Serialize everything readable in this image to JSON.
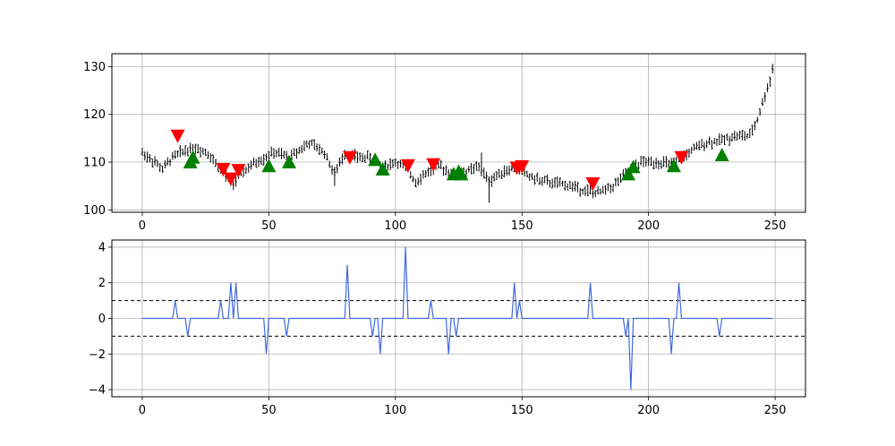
{
  "chart_data": [
    {
      "type": "ohlc",
      "title": "",
      "xlabel": "",
      "ylabel": "",
      "xlim": [
        -12,
        262
      ],
      "ylim": [
        99.5,
        132.7
      ],
      "xticks": [
        0,
        50,
        100,
        150,
        200,
        250
      ],
      "yticks": [
        100,
        110,
        120,
        130
      ],
      "grid": true,
      "price_series": [
        {
          "x": 0,
          "value": 112
        },
        {
          "x": 5,
          "value": 110
        },
        {
          "x": 8,
          "value": 108.5
        },
        {
          "x": 12,
          "value": 111
        },
        {
          "x": 17,
          "value": 112.5
        },
        {
          "x": 21,
          "value": 113
        },
        {
          "x": 26,
          "value": 112
        },
        {
          "x": 30,
          "value": 109
        },
        {
          "x": 33,
          "value": 107
        },
        {
          "x": 36,
          "value": 105.5
        },
        {
          "x": 40,
          "value": 108
        },
        {
          "x": 45,
          "value": 110
        },
        {
          "x": 52,
          "value": 112
        },
        {
          "x": 58,
          "value": 111
        },
        {
          "x": 63,
          "value": 113
        },
        {
          "x": 66,
          "value": 114
        },
        {
          "x": 72,
          "value": 112
        },
        {
          "x": 76,
          "value": 107.5
        },
        {
          "x": 80,
          "value": 112
        },
        {
          "x": 85,
          "value": 111
        },
        {
          "x": 90,
          "value": 111
        },
        {
          "x": 95,
          "value": 109
        },
        {
          "x": 100,
          "value": 110
        },
        {
          "x": 104,
          "value": 109
        },
        {
          "x": 108,
          "value": 106
        },
        {
          "x": 113,
          "value": 108
        },
        {
          "x": 118,
          "value": 109
        },
        {
          "x": 123,
          "value": 107.5
        },
        {
          "x": 128,
          "value": 108
        },
        {
          "x": 133,
          "value": 109
        },
        {
          "x": 137,
          "value": 106
        },
        {
          "x": 142,
          "value": 108
        },
        {
          "x": 148,
          "value": 109
        },
        {
          "x": 153,
          "value": 107
        },
        {
          "x": 158,
          "value": 106
        },
        {
          "x": 164,
          "value": 105.5
        },
        {
          "x": 170,
          "value": 105
        },
        {
          "x": 175,
          "value": 104
        },
        {
          "x": 180,
          "value": 103.5
        },
        {
          "x": 186,
          "value": 105
        },
        {
          "x": 192,
          "value": 108
        },
        {
          "x": 197,
          "value": 110
        },
        {
          "x": 203,
          "value": 110
        },
        {
          "x": 210,
          "value": 109.5
        },
        {
          "x": 216,
          "value": 112
        },
        {
          "x": 222,
          "value": 114
        },
        {
          "x": 228,
          "value": 114.5
        },
        {
          "x": 234,
          "value": 115.5
        },
        {
          "x": 240,
          "value": 115.5
        },
        {
          "x": 243,
          "value": 119
        },
        {
          "x": 246,
          "value": 124
        },
        {
          "x": 248,
          "value": 127
        },
        {
          "x": 249,
          "value": 130
        }
      ],
      "wick_spread": 1.6,
      "spikes": [
        {
          "x": 76,
          "low": 105,
          "high": 109
        },
        {
          "x": 137,
          "low": 101.5,
          "high": 107
        },
        {
          "x": 134,
          "low": 107,
          "high": 112
        }
      ],
      "sell_signals": {
        "color": "#ff0000",
        "points": [
          {
            "x": 14,
            "y": 115.5
          },
          {
            "x": 32,
            "y": 108.5
          },
          {
            "x": 35,
            "y": 106.5
          },
          {
            "x": 38,
            "y": 108.3
          },
          {
            "x": 82,
            "y": 111
          },
          {
            "x": 105,
            "y": 109.3
          },
          {
            "x": 115,
            "y": 109.5
          },
          {
            "x": 148,
            "y": 108.8
          },
          {
            "x": 150,
            "y": 109.1
          },
          {
            "x": 178,
            "y": 105.5
          },
          {
            "x": 213,
            "y": 111
          }
        ]
      },
      "buy_signals": {
        "color": "#008000",
        "points": [
          {
            "x": 19,
            "y": 110
          },
          {
            "x": 20,
            "y": 111
          },
          {
            "x": 50,
            "y": 109.2
          },
          {
            "x": 58,
            "y": 110
          },
          {
            "x": 92,
            "y": 110.5
          },
          {
            "x": 95,
            "y": 108.5
          },
          {
            "x": 123,
            "y": 107.5
          },
          {
            "x": 125,
            "y": 108
          },
          {
            "x": 126,
            "y": 107.5
          },
          {
            "x": 192,
            "y": 107.5
          },
          {
            "x": 194,
            "y": 109
          },
          {
            "x": 210,
            "y": 109.2
          },
          {
            "x": 229,
            "y": 111.5
          }
        ]
      }
    },
    {
      "type": "line",
      "title": "",
      "xlabel": "",
      "ylabel": "",
      "xlim": [
        -12,
        262
      ],
      "ylim": [
        -4.4,
        4.4
      ],
      "xticks": [
        0,
        50,
        100,
        150,
        200,
        250
      ],
      "yticks": [
        -4,
        -2,
        0,
        2,
        4
      ],
      "grid": true,
      "line_color": "#4169e1",
      "threshold_lines": [
        1,
        -1
      ],
      "x_max": 249,
      "impulses": [
        {
          "x": 13,
          "y": 1
        },
        {
          "x": 18,
          "y": -1
        },
        {
          "x": 31,
          "y": 1
        },
        {
          "x": 35,
          "y": 2
        },
        {
          "x": 37,
          "y": 2
        },
        {
          "x": 49,
          "y": -2
        },
        {
          "x": 57,
          "y": -1
        },
        {
          "x": 81,
          "y": 3
        },
        {
          "x": 91,
          "y": -1
        },
        {
          "x": 94,
          "y": -2
        },
        {
          "x": 104,
          "y": 4
        },
        {
          "x": 114,
          "y": 1
        },
        {
          "x": 121,
          "y": -2
        },
        {
          "x": 124,
          "y": -1
        },
        {
          "x": 147,
          "y": 2
        },
        {
          "x": 149,
          "y": 1
        },
        {
          "x": 177,
          "y": 2
        },
        {
          "x": 191,
          "y": -1
        },
        {
          "x": 193,
          "y": -4
        },
        {
          "x": 209,
          "y": -2
        },
        {
          "x": 212,
          "y": 2
        },
        {
          "x": 228,
          "y": -1
        }
      ]
    }
  ]
}
